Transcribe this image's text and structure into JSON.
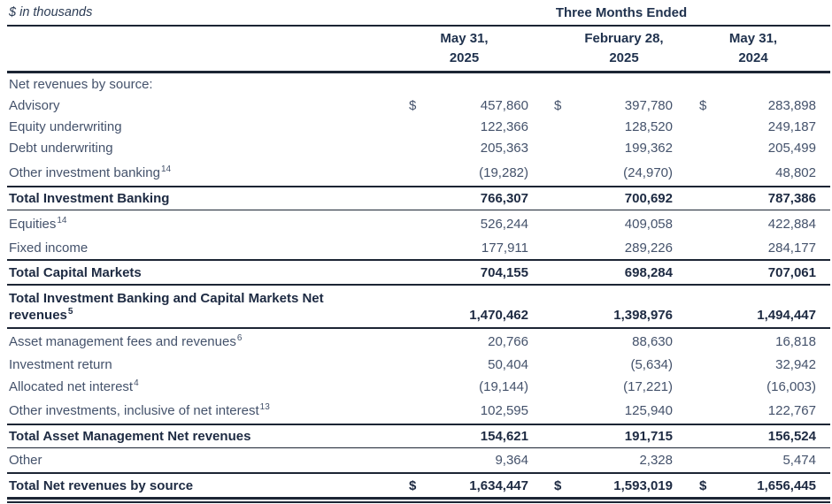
{
  "meta": {
    "units_label": "$ in thousands",
    "period_header": "Three Months Ended",
    "colors": {
      "text_regular": "#44526b",
      "text_strong": "#1d2a42",
      "rule": "#1c2534",
      "background": "#ffffff"
    }
  },
  "columns": [
    {
      "line1": "May 31,",
      "line2": "2025"
    },
    {
      "line1": "February 28,",
      "line2": "2025"
    },
    {
      "line1": "May 31,",
      "line2": "2024"
    }
  ],
  "rows": [
    {
      "label": "Net revenues by source:",
      "sup": "",
      "d1": "",
      "v1": "",
      "d2": "",
      "v2": "",
      "d3": "",
      "v3": ""
    },
    {
      "label": "Advisory",
      "sup": "",
      "d1": "$",
      "v1": "457,860",
      "d2": "$",
      "v2": "397,780",
      "d3": "$",
      "v3": "283,898"
    },
    {
      "label": "Equity underwriting",
      "sup": "",
      "d1": "",
      "v1": "122,366",
      "d2": "",
      "v2": "128,520",
      "d3": "",
      "v3": "249,187"
    },
    {
      "label": "Debt underwriting",
      "sup": "",
      "d1": "",
      "v1": "205,363",
      "d2": "",
      "v2": "199,362",
      "d3": "",
      "v3": "205,499"
    },
    {
      "label": "Other investment banking",
      "sup": "14",
      "d1": "",
      "v1": "(19,282)",
      "d2": "",
      "v2": "(24,970)",
      "d3": "",
      "v3": "48,802"
    },
    {
      "label": "Total Investment Banking",
      "sup": "",
      "d1": "",
      "v1": "766,307",
      "d2": "",
      "v2": "700,692",
      "d3": "",
      "v3": "787,386"
    },
    {
      "label": "Equities",
      "sup": "14",
      "d1": "",
      "v1": "526,244",
      "d2": "",
      "v2": "409,058",
      "d3": "",
      "v3": "422,884"
    },
    {
      "label": "Fixed income",
      "sup": "",
      "d1": "",
      "v1": "177,911",
      "d2": "",
      "v2": "289,226",
      "d3": "",
      "v3": "284,177"
    },
    {
      "label": "Total Capital Markets",
      "sup": "",
      "d1": "",
      "v1": "704,155",
      "d2": "",
      "v2": "698,284",
      "d3": "",
      "v3": "707,061"
    },
    {
      "label": "Total Investment Banking and Capital Markets Net",
      "label2": "revenues",
      "sup": "5",
      "d1": "",
      "v1": "1,470,462",
      "d2": "",
      "v2": "1,398,976",
      "d3": "",
      "v3": "1,494,447"
    },
    {
      "label": "Asset management fees and revenues",
      "sup": "6",
      "d1": "",
      "v1": "20,766",
      "d2": "",
      "v2": "88,630",
      "d3": "",
      "v3": "16,818"
    },
    {
      "label": "Investment return",
      "sup": "",
      "d1": "",
      "v1": "50,404",
      "d2": "",
      "v2": "(5,634)",
      "d3": "",
      "v3": "32,942"
    },
    {
      "label": "Allocated net interest",
      "sup": "4",
      "d1": "",
      "v1": "(19,144)",
      "d2": "",
      "v2": "(17,221)",
      "d3": "",
      "v3": "(16,003)"
    },
    {
      "label": "Other investments, inclusive of net interest",
      "sup": "13",
      "d1": "",
      "v1": "102,595",
      "d2": "",
      "v2": "125,940",
      "d3": "",
      "v3": "122,767"
    },
    {
      "label": "Total Asset Management Net revenues",
      "sup": "",
      "d1": "",
      "v1": "154,621",
      "d2": "",
      "v2": "191,715",
      "d3": "",
      "v3": "156,524"
    },
    {
      "label": "Other",
      "sup": "",
      "d1": "",
      "v1": "9,364",
      "d2": "",
      "v2": "2,328",
      "d3": "",
      "v3": "5,474"
    },
    {
      "label": "Total Net revenues by source",
      "sup": "",
      "d1": "$",
      "v1": "1,634,447",
      "d2": "$",
      "v2": "1,593,019",
      "d3": "$",
      "v3": "1,656,445"
    }
  ]
}
